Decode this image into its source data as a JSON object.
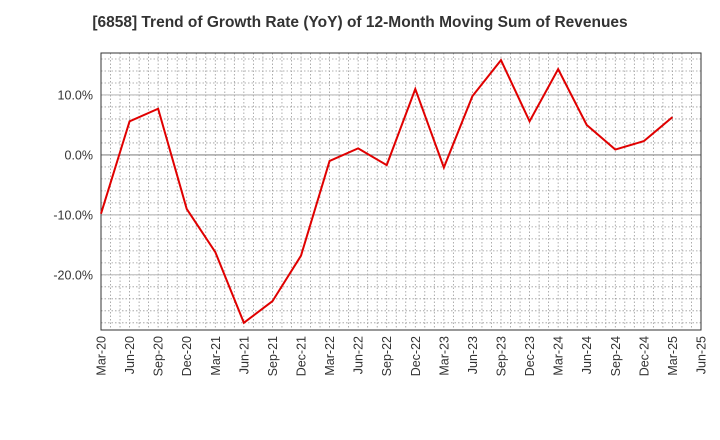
{
  "chart_data": {
    "type": "line",
    "title": "[6858]  Trend of Growth Rate (YoY) of 12-Month Moving Sum of Revenues",
    "xlabel": "",
    "ylabel": "",
    "x": [
      "Mar-20",
      "Jun-20",
      "Sep-20",
      "Dec-20",
      "Mar-21",
      "Jun-21",
      "Sep-21",
      "Dec-21",
      "Mar-22",
      "Jun-22",
      "Sep-22",
      "Dec-22",
      "Mar-23",
      "Jun-23",
      "Sep-23",
      "Dec-23",
      "Mar-24",
      "Jun-24",
      "Sep-24",
      "Dec-24",
      "Mar-25"
    ],
    "x_tick_labels": [
      "Mar-20",
      "Jun-20",
      "Sep-20",
      "Dec-20",
      "Mar-21",
      "Jun-21",
      "Sep-21",
      "Dec-21",
      "Mar-22",
      "Jun-22",
      "Sep-22",
      "Dec-22",
      "Mar-23",
      "Jun-23",
      "Sep-23",
      "Dec-23",
      "Mar-24",
      "Jun-24",
      "Sep-24",
      "Dec-24",
      "Mar-25",
      "Jun-25"
    ],
    "series": [
      {
        "values": [
          -9.8,
          5.6,
          7.7,
          -9.0,
          -16.2,
          -28.0,
          -24.4,
          -16.8,
          -1.0,
          1.1,
          -1.7,
          11.0,
          -2.1,
          9.8,
          15.8,
          5.6,
          14.3,
          5.0,
          0.9,
          2.3,
          6.3
        ]
      }
    ],
    "y_ticks": [
      10,
      0,
      -10,
      -20
    ],
    "y_tick_labels": [
      "10.0%",
      "0.0%",
      "-10.0%",
      "-20.0%"
    ],
    "ylim": [
      -29.2,
      17.0
    ],
    "grid": true,
    "line_color": "#e00000",
    "grid_color": "#999999",
    "zero_line_color": "#888888"
  }
}
